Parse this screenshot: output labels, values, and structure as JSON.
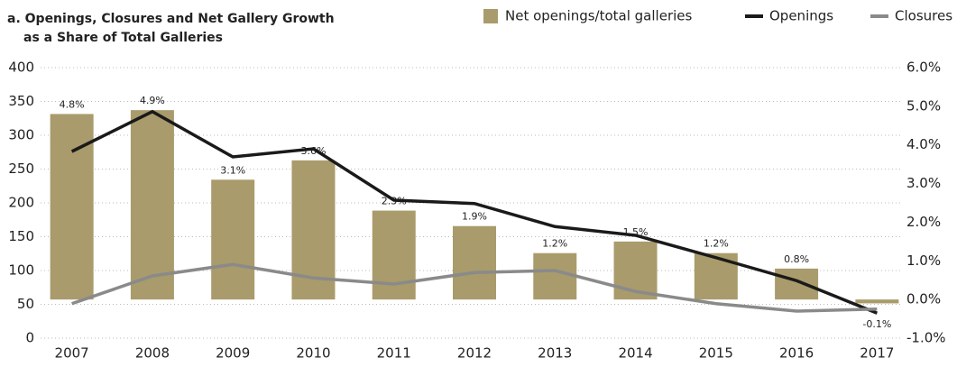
{
  "chart_data": {
    "type": "bar-line",
    "title": [
      "a. Openings, Closures and Net Gallery Growth",
      "as a Share of Total Galleries"
    ],
    "categories": [
      "2007",
      "2008",
      "2009",
      "2010",
      "2011",
      "2012",
      "2013",
      "2014",
      "2015",
      "2016",
      "2017"
    ],
    "series": [
      {
        "name": "Net openings/total galleries",
        "type": "bar",
        "axis": "y2",
        "color": "#a99b6b",
        "values": [
          4.8,
          4.9,
          3.1,
          3.6,
          2.3,
          1.9,
          1.2,
          1.5,
          1.2,
          0.8,
          -0.1
        ],
        "value_labels": [
          "4.8%",
          "4.9%",
          "3.1%",
          "3.6%",
          "2.3%",
          "1.9%",
          "1.2%",
          "1.5%",
          "1.2%",
          "0.8%",
          "-0.1%"
        ]
      },
      {
        "name": "Openings",
        "type": "line",
        "axis": "y",
        "color": "#1a1a1a",
        "values": [
          276,
          335,
          268,
          280,
          204,
          199,
          165,
          152,
          119,
          85,
          37
        ]
      },
      {
        "name": "Closures",
        "type": "line",
        "axis": "y",
        "color": "#8a8a8a",
        "values": [
          51,
          92,
          109,
          89,
          80,
          97,
          100,
          69,
          51,
          40,
          43
        ]
      }
    ],
    "ylim": [
      0,
      400
    ],
    "yticks": [
      0,
      50,
      100,
      150,
      200,
      250,
      300,
      350,
      400
    ],
    "y2lim": [
      -1.0,
      6.0
    ],
    "y2ticks": [
      {
        "value": -1.0,
        "label": "-1.0%"
      },
      {
        "value": 0,
        "label": "0.0%"
      },
      {
        "value": 1.0,
        "label": "1.0%"
      },
      {
        "value": 2.0,
        "label": "2.0%"
      },
      {
        "value": 3.0,
        "label": "3.0%"
      },
      {
        "value": 4.0,
        "label": "4.0%"
      },
      {
        "value": 5.0,
        "label": "5.0%"
      },
      {
        "value": 6.0,
        "label": "6.0%"
      }
    ],
    "grid": true,
    "legend": "top-right"
  }
}
